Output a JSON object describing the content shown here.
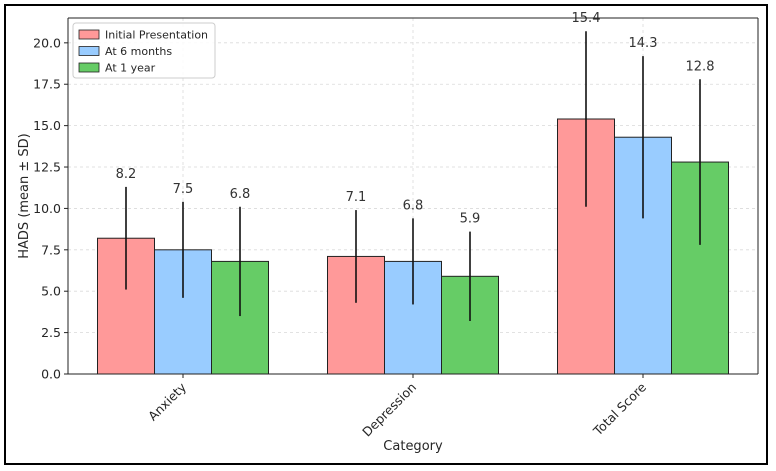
{
  "chart_data": {
    "type": "bar",
    "title": "",
    "xlabel": "Category",
    "ylabel": "HADS (mean ± SD)",
    "categories": [
      "Anxiety",
      "Depression",
      "Total Score"
    ],
    "ylim": [
      0,
      21.5
    ],
    "yticks": [
      0.0,
      2.5,
      5.0,
      7.5,
      10.0,
      12.5,
      15.0,
      17.5,
      20.0
    ],
    "ytick_labels": [
      "0.0",
      "2.5",
      "5.0",
      "7.5",
      "10.0",
      "12.5",
      "15.0",
      "17.5",
      "20.0"
    ],
    "grid": true,
    "legend_position": "top-left",
    "series": [
      {
        "name": "Initial Presentation",
        "color": "#ff9999",
        "values": [
          8.2,
          7.1,
          15.4
        ],
        "sd": [
          3.1,
          2.8,
          5.3
        ],
        "labels": [
          "8.2",
          "7.1",
          "15.4"
        ]
      },
      {
        "name": "At 6 months",
        "color": "#99ccff",
        "values": [
          7.5,
          6.8,
          14.3
        ],
        "sd": [
          2.9,
          2.6,
          4.9
        ],
        "labels": [
          "7.5",
          "6.8",
          "14.3"
        ]
      },
      {
        "name": "At 1 year",
        "color": "#66cc66",
        "values": [
          6.8,
          5.9,
          12.8
        ],
        "sd": [
          3.3,
          2.7,
          5.0
        ],
        "labels": [
          "6.8",
          "5.9",
          "12.8"
        ]
      }
    ]
  }
}
